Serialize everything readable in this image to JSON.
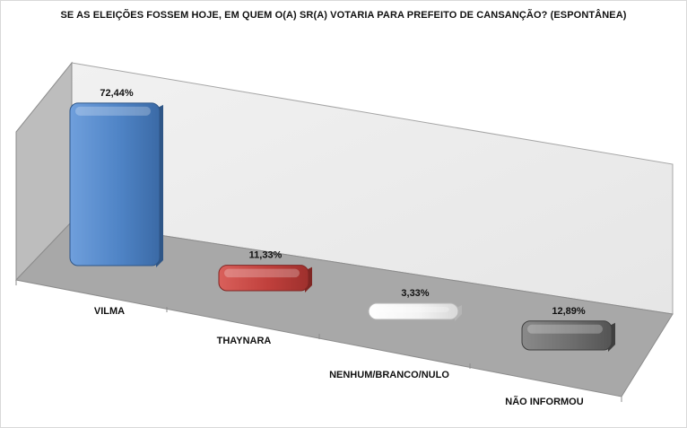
{
  "chart_data": {
    "type": "bar",
    "title": "SE AS ELEIÇÕES FOSSEM HOJE, EM QUEM O(A) SR(A) VOTARIA PARA PREFEITO DE CANSANÇÃO? (ESPONTÂNEA)",
    "categories": [
      "VILMA",
      "THAYNARA",
      "NENHUM/BRANCO/NULO",
      "NÃO INFORMOU"
    ],
    "values": [
      72.44,
      11.33,
      3.33,
      12.89
    ],
    "data_labels": [
      "72,44%",
      "11,33%",
      "3,33%",
      "12,89%"
    ],
    "colors": [
      "#4a7ebf",
      "#c0403c",
      "#f2f2f2",
      "#6e6e6e"
    ],
    "ylim": [
      0,
      100
    ],
    "grid": false,
    "legend": "none",
    "style": "3d-perspective"
  }
}
